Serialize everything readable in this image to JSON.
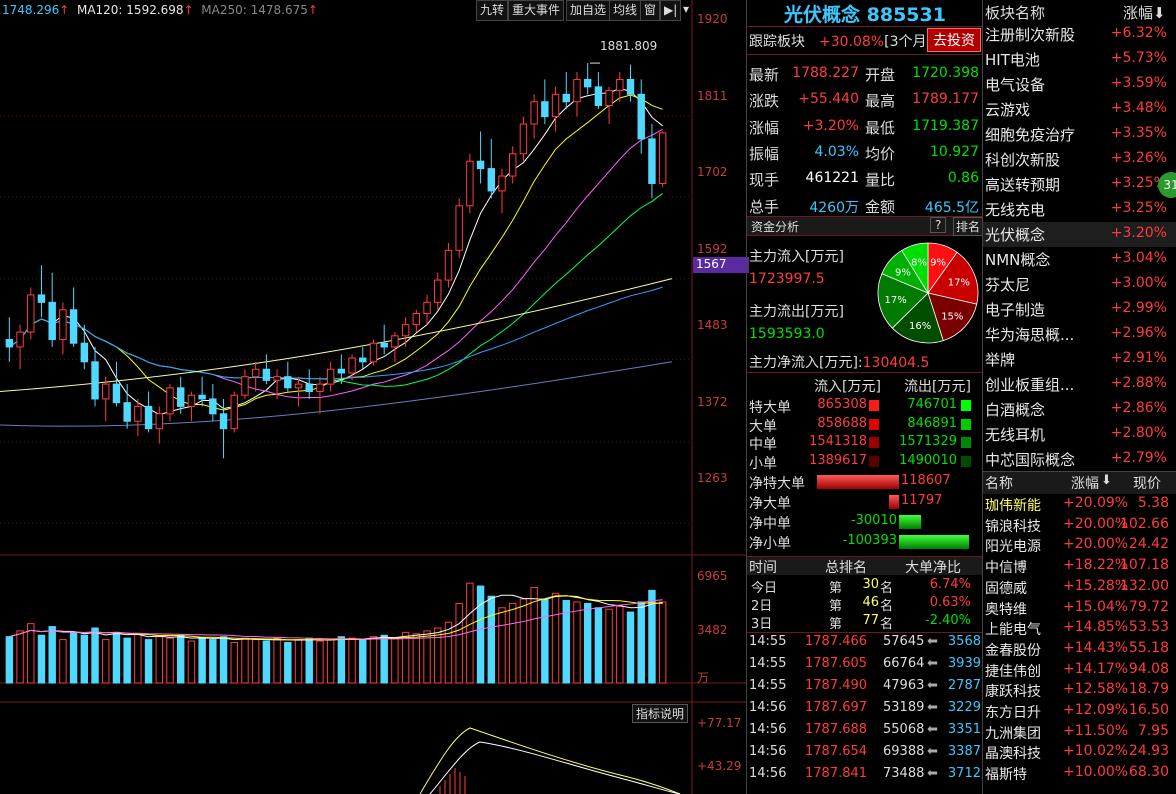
{
  "header": {
    "price_label": "1748.296",
    "ma120_label": "MA120: 1592.698",
    "ma250_label": "MA250: 1478.675",
    "buttons": [
      "九转",
      "重大事件",
      "加自选",
      "均线",
      "窗"
    ],
    "arrow_icon": "▶|"
  },
  "scale": {
    "main": [
      "1920",
      "1811",
      "1702",
      "1592",
      "1483",
      "1372",
      "1263"
    ],
    "highlight": "1567",
    "volume": [
      "6965",
      "3482",
      "万"
    ],
    "indicator": [
      "+77.17",
      "+43.29"
    ],
    "peak_label": "1881.809",
    "indicator_btn": "指标说明"
  },
  "chart_data": {
    "type": "candlestick",
    "y_range": [
      1220,
      1940
    ],
    "volume_range": [
      0,
      8500
    ],
    "candles": [
      [
        1510,
        1540,
        1480,
        1500
      ],
      [
        1500,
        1530,
        1470,
        1520
      ],
      [
        1520,
        1580,
        1510,
        1570
      ],
      [
        1570,
        1610,
        1540,
        1560
      ],
      [
        1560,
        1600,
        1500,
        1510
      ],
      [
        1510,
        1560,
        1490,
        1550
      ],
      [
        1550,
        1580,
        1500,
        1505
      ],
      [
        1505,
        1530,
        1470,
        1480
      ],
      [
        1480,
        1500,
        1420,
        1430
      ],
      [
        1430,
        1460,
        1400,
        1450
      ],
      [
        1450,
        1480,
        1420,
        1425
      ],
      [
        1425,
        1450,
        1390,
        1400
      ],
      [
        1400,
        1430,
        1380,
        1420
      ],
      [
        1420,
        1440,
        1385,
        1390
      ],
      [
        1390,
        1420,
        1370,
        1410
      ],
      [
        1410,
        1450,
        1400,
        1445
      ],
      [
        1445,
        1460,
        1410,
        1420
      ],
      [
        1420,
        1440,
        1400,
        1435
      ],
      [
        1435,
        1460,
        1420,
        1430
      ],
      [
        1430,
        1450,
        1400,
        1410
      ],
      [
        1410,
        1430,
        1350,
        1390
      ],
      [
        1390,
        1440,
        1385,
        1435
      ],
      [
        1435,
        1470,
        1430,
        1460
      ],
      [
        1460,
        1480,
        1440,
        1470
      ],
      [
        1470,
        1490,
        1450,
        1455
      ],
      [
        1455,
        1470,
        1430,
        1460
      ],
      [
        1460,
        1480,
        1440,
        1445
      ],
      [
        1445,
        1460,
        1420,
        1450
      ],
      [
        1450,
        1470,
        1430,
        1440
      ],
      [
        1440,
        1460,
        1410,
        1450
      ],
      [
        1450,
        1480,
        1440,
        1470
      ],
      [
        1470,
        1490,
        1450,
        1465
      ],
      [
        1465,
        1490,
        1455,
        1485
      ],
      [
        1485,
        1500,
        1470,
        1480
      ],
      [
        1480,
        1510,
        1475,
        1505
      ],
      [
        1505,
        1530,
        1490,
        1500
      ],
      [
        1500,
        1520,
        1480,
        1515
      ],
      [
        1515,
        1540,
        1500,
        1530
      ],
      [
        1530,
        1550,
        1520,
        1545
      ],
      [
        1545,
        1570,
        1530,
        1560
      ],
      [
        1560,
        1600,
        1550,
        1590
      ],
      [
        1590,
        1640,
        1580,
        1630
      ],
      [
        1630,
        1700,
        1620,
        1690
      ],
      [
        1690,
        1760,
        1680,
        1750
      ],
      [
        1750,
        1790,
        1720,
        1740
      ],
      [
        1740,
        1780,
        1700,
        1710
      ],
      [
        1710,
        1740,
        1680,
        1730
      ],
      [
        1730,
        1770,
        1720,
        1760
      ],
      [
        1760,
        1810,
        1750,
        1800
      ],
      [
        1800,
        1840,
        1780,
        1830
      ],
      [
        1830,
        1860,
        1800,
        1810
      ],
      [
        1810,
        1850,
        1790,
        1840
      ],
      [
        1840,
        1870,
        1820,
        1830
      ],
      [
        1830,
        1870,
        1810,
        1860
      ],
      [
        1860,
        1882,
        1840,
        1850
      ],
      [
        1850,
        1870,
        1820,
        1825
      ],
      [
        1825,
        1850,
        1800,
        1845
      ],
      [
        1845,
        1870,
        1830,
        1860
      ],
      [
        1860,
        1880,
        1830,
        1840
      ],
      [
        1840,
        1860,
        1760,
        1780
      ],
      [
        1780,
        1800,
        1700,
        1720
      ],
      [
        1720,
        1790,
        1715,
        1788
      ]
    ],
    "volumes": [
      3200,
      3600,
      4100,
      3300,
      3900,
      3000,
      3500,
      3300,
      3800,
      3000,
      3500,
      3100,
      3400,
      3000,
      3200,
      3100,
      3300,
      2900,
      3100,
      3000,
      3200,
      2800,
      3100,
      3000,
      2900,
      3100,
      2800,
      3000,
      3100,
      2900,
      3000,
      3200,
      3100,
      3000,
      3200,
      3300,
      3100,
      3500,
      3400,
      3600,
      3800,
      4200,
      5500,
      6900,
      6700,
      6000,
      5200,
      5500,
      5800,
      6600,
      5800,
      6200,
      5700,
      5600,
      5500,
      5200,
      5100,
      5300,
      4900,
      5600,
      6400,
      5600
    ]
  },
  "panel": {
    "title": "光伏概念 885531",
    "track_label": "跟踪板块",
    "track_pct": "+30.08%",
    "track_period": "[3个月]",
    "invest_btn": "去投资",
    "quotes": [
      {
        "l": "最新",
        "v": "1788.227",
        "l2": "开盘",
        "v2": "1720.398"
      },
      {
        "l": "涨跌",
        "v": "+55.440",
        "l2": "最高",
        "v2": "1789.177"
      },
      {
        "l": "涨幅",
        "v": "+3.20%",
        "l2": "最低",
        "v2": "1719.387"
      },
      {
        "l": "振幅",
        "v": "4.03%",
        "l2": "均价",
        "v2": "10.927"
      },
      {
        "l": "现手",
        "v": "461221",
        "l2": "量比",
        "v2": "0.86"
      },
      {
        "l": "总手",
        "v": "4260万",
        "l2": "金额",
        "v2": "465.5亿"
      }
    ],
    "fund_title": "资金分析",
    "fund_q": "?",
    "fund_rank": "排名",
    "inflow_label": "主力流入[万元]",
    "inflow_value": "1723997.5",
    "outflow_label": "主力流出[万元]",
    "outflow_value": "1593593.0",
    "pie": [
      {
        "label": "9%",
        "value": 9,
        "color": "#ff1010"
      },
      {
        "label": "17%",
        "value": 17,
        "color": "#c80000"
      },
      {
        "label": "15%",
        "value": 15,
        "color": "#7a0000"
      },
      {
        "label": "16%",
        "value": 16,
        "color": "#004d00"
      },
      {
        "label": "17%",
        "value": 17,
        "color": "#007a00"
      },
      {
        "label": "9%",
        "value": 9,
        "color": "#00b000"
      },
      {
        "label": "8%",
        "value": 8,
        "color": "#00dd00"
      }
    ],
    "net_label": "主力净流入[万元]:",
    "net_value": "130404.5",
    "flow_head": [
      "流入[万元]",
      "流出[万元]"
    ],
    "flow_rows": [
      {
        "n": "特大单",
        "in": "865308",
        "out": "746701"
      },
      {
        "n": "大单",
        "in": "858688",
        "out": "846891"
      },
      {
        "n": "中单",
        "in": "1541318",
        "out": "1571329"
      },
      {
        "n": "小单",
        "in": "1389617",
        "out": "1490010"
      }
    ],
    "net_rows": [
      {
        "n": "净特大单",
        "v": "118607",
        "side": "pos",
        "w": 82
      },
      {
        "n": "净大单",
        "v": "11797",
        "side": "pos",
        "w": 10
      },
      {
        "n": "净中单",
        "v": "-30010",
        "side": "neg",
        "w": 22
      },
      {
        "n": "净小单",
        "v": "-100393",
        "side": "neg",
        "w": 70
      }
    ],
    "rank_head": [
      "时间",
      "总排名",
      "大单净比"
    ],
    "rank_rows": [
      {
        "t": "今日",
        "d": "第",
        "r": "30",
        "m": "名",
        "p": "6.74%"
      },
      {
        "t": "2日",
        "d": "第",
        "r": "46",
        "m": "名",
        "p": "0.63%"
      },
      {
        "t": "3日",
        "d": "第",
        "r": "77",
        "m": "名",
        "p": "-2.40%"
      }
    ],
    "ticks": [
      {
        "t": "14:55",
        "p": "1787.466",
        "v": "57645",
        "c": "3568"
      },
      {
        "t": "14:55",
        "p": "1787.605",
        "v": "66764",
        "c": "3939"
      },
      {
        "t": "14:55",
        "p": "1787.490",
        "v": "47963",
        "c": "2787"
      },
      {
        "t": "14:56",
        "p": "1787.697",
        "v": "53189",
        "c": "3229"
      },
      {
        "t": "14:56",
        "p": "1787.688",
        "v": "55068",
        "c": "3351"
      },
      {
        "t": "14:56",
        "p": "1787.654",
        "v": "69388",
        "c": "3387"
      },
      {
        "t": "14:56",
        "p": "1787.841",
        "v": "73488",
        "c": "3712"
      }
    ]
  },
  "sectors": {
    "head_name": "板块名称",
    "head_pct": "涨幅",
    "items": [
      {
        "n": "注册制次新股",
        "p": "+6.32%"
      },
      {
        "n": "HIT电池",
        "p": "+5.73%"
      },
      {
        "n": "电气设备",
        "p": "+3.59%"
      },
      {
        "n": "云游戏",
        "p": "+3.48%"
      },
      {
        "n": "细胞免疫治疗",
        "p": "+3.35%"
      },
      {
        "n": "科创次新股",
        "p": "+3.26%"
      },
      {
        "n": "高送转预期",
        "p": "+3.25%"
      },
      {
        "n": "无线充电",
        "p": "+3.25%"
      },
      {
        "n": "光伏概念",
        "p": "+3.20%"
      },
      {
        "n": "NMN概念",
        "p": "+3.04%"
      },
      {
        "n": "芬太尼",
        "p": "+3.00%"
      },
      {
        "n": "电子制造",
        "p": "+2.99%"
      },
      {
        "n": "华为海思概...",
        "p": "+2.96%"
      },
      {
        "n": "举牌",
        "p": "+2.91%"
      },
      {
        "n": "创业板重组...",
        "p": "+2.88%"
      },
      {
        "n": "白酒概念",
        "p": "+2.86%"
      },
      {
        "n": "无线耳机",
        "p": "+2.80%"
      },
      {
        "n": "中芯国际概念",
        "p": "+2.79%"
      }
    ],
    "badge": "31"
  },
  "stocks": {
    "head": [
      "名称",
      "涨幅",
      "现价"
    ],
    "items": [
      {
        "n": "珈伟新能",
        "p": "+20.09%",
        "v": "5.38"
      },
      {
        "n": "锦浪科技",
        "p": "+20.00%",
        "v": "102.66"
      },
      {
        "n": "阳光电源",
        "p": "+20.00%",
        "v": "24.42"
      },
      {
        "n": "中信博",
        "p": "+18.22%",
        "v": "107.18"
      },
      {
        "n": "固德威",
        "p": "+15.28%",
        "v": "132.00"
      },
      {
        "n": "奥特维",
        "p": "+15.04%",
        "v": "79.72"
      },
      {
        "n": "上能电气",
        "p": "+14.85%",
        "v": "53.53"
      },
      {
        "n": "金春股份",
        "p": "+14.43%",
        "v": "55.18"
      },
      {
        "n": "捷佳伟创",
        "p": "+14.17%",
        "v": "94.08"
      },
      {
        "n": "康跃科技",
        "p": "+12.58%",
        "v": "18.79"
      },
      {
        "n": "东方日升",
        "p": "+12.09%",
        "v": "16.50"
      },
      {
        "n": "九洲集团",
        "p": "+11.50%",
        "v": "7.95"
      },
      {
        "n": "晶澳科技",
        "p": "+10.02%",
        "v": "24.93"
      },
      {
        "n": "福斯特",
        "p": "+10.00%",
        "v": "68.30"
      }
    ]
  }
}
